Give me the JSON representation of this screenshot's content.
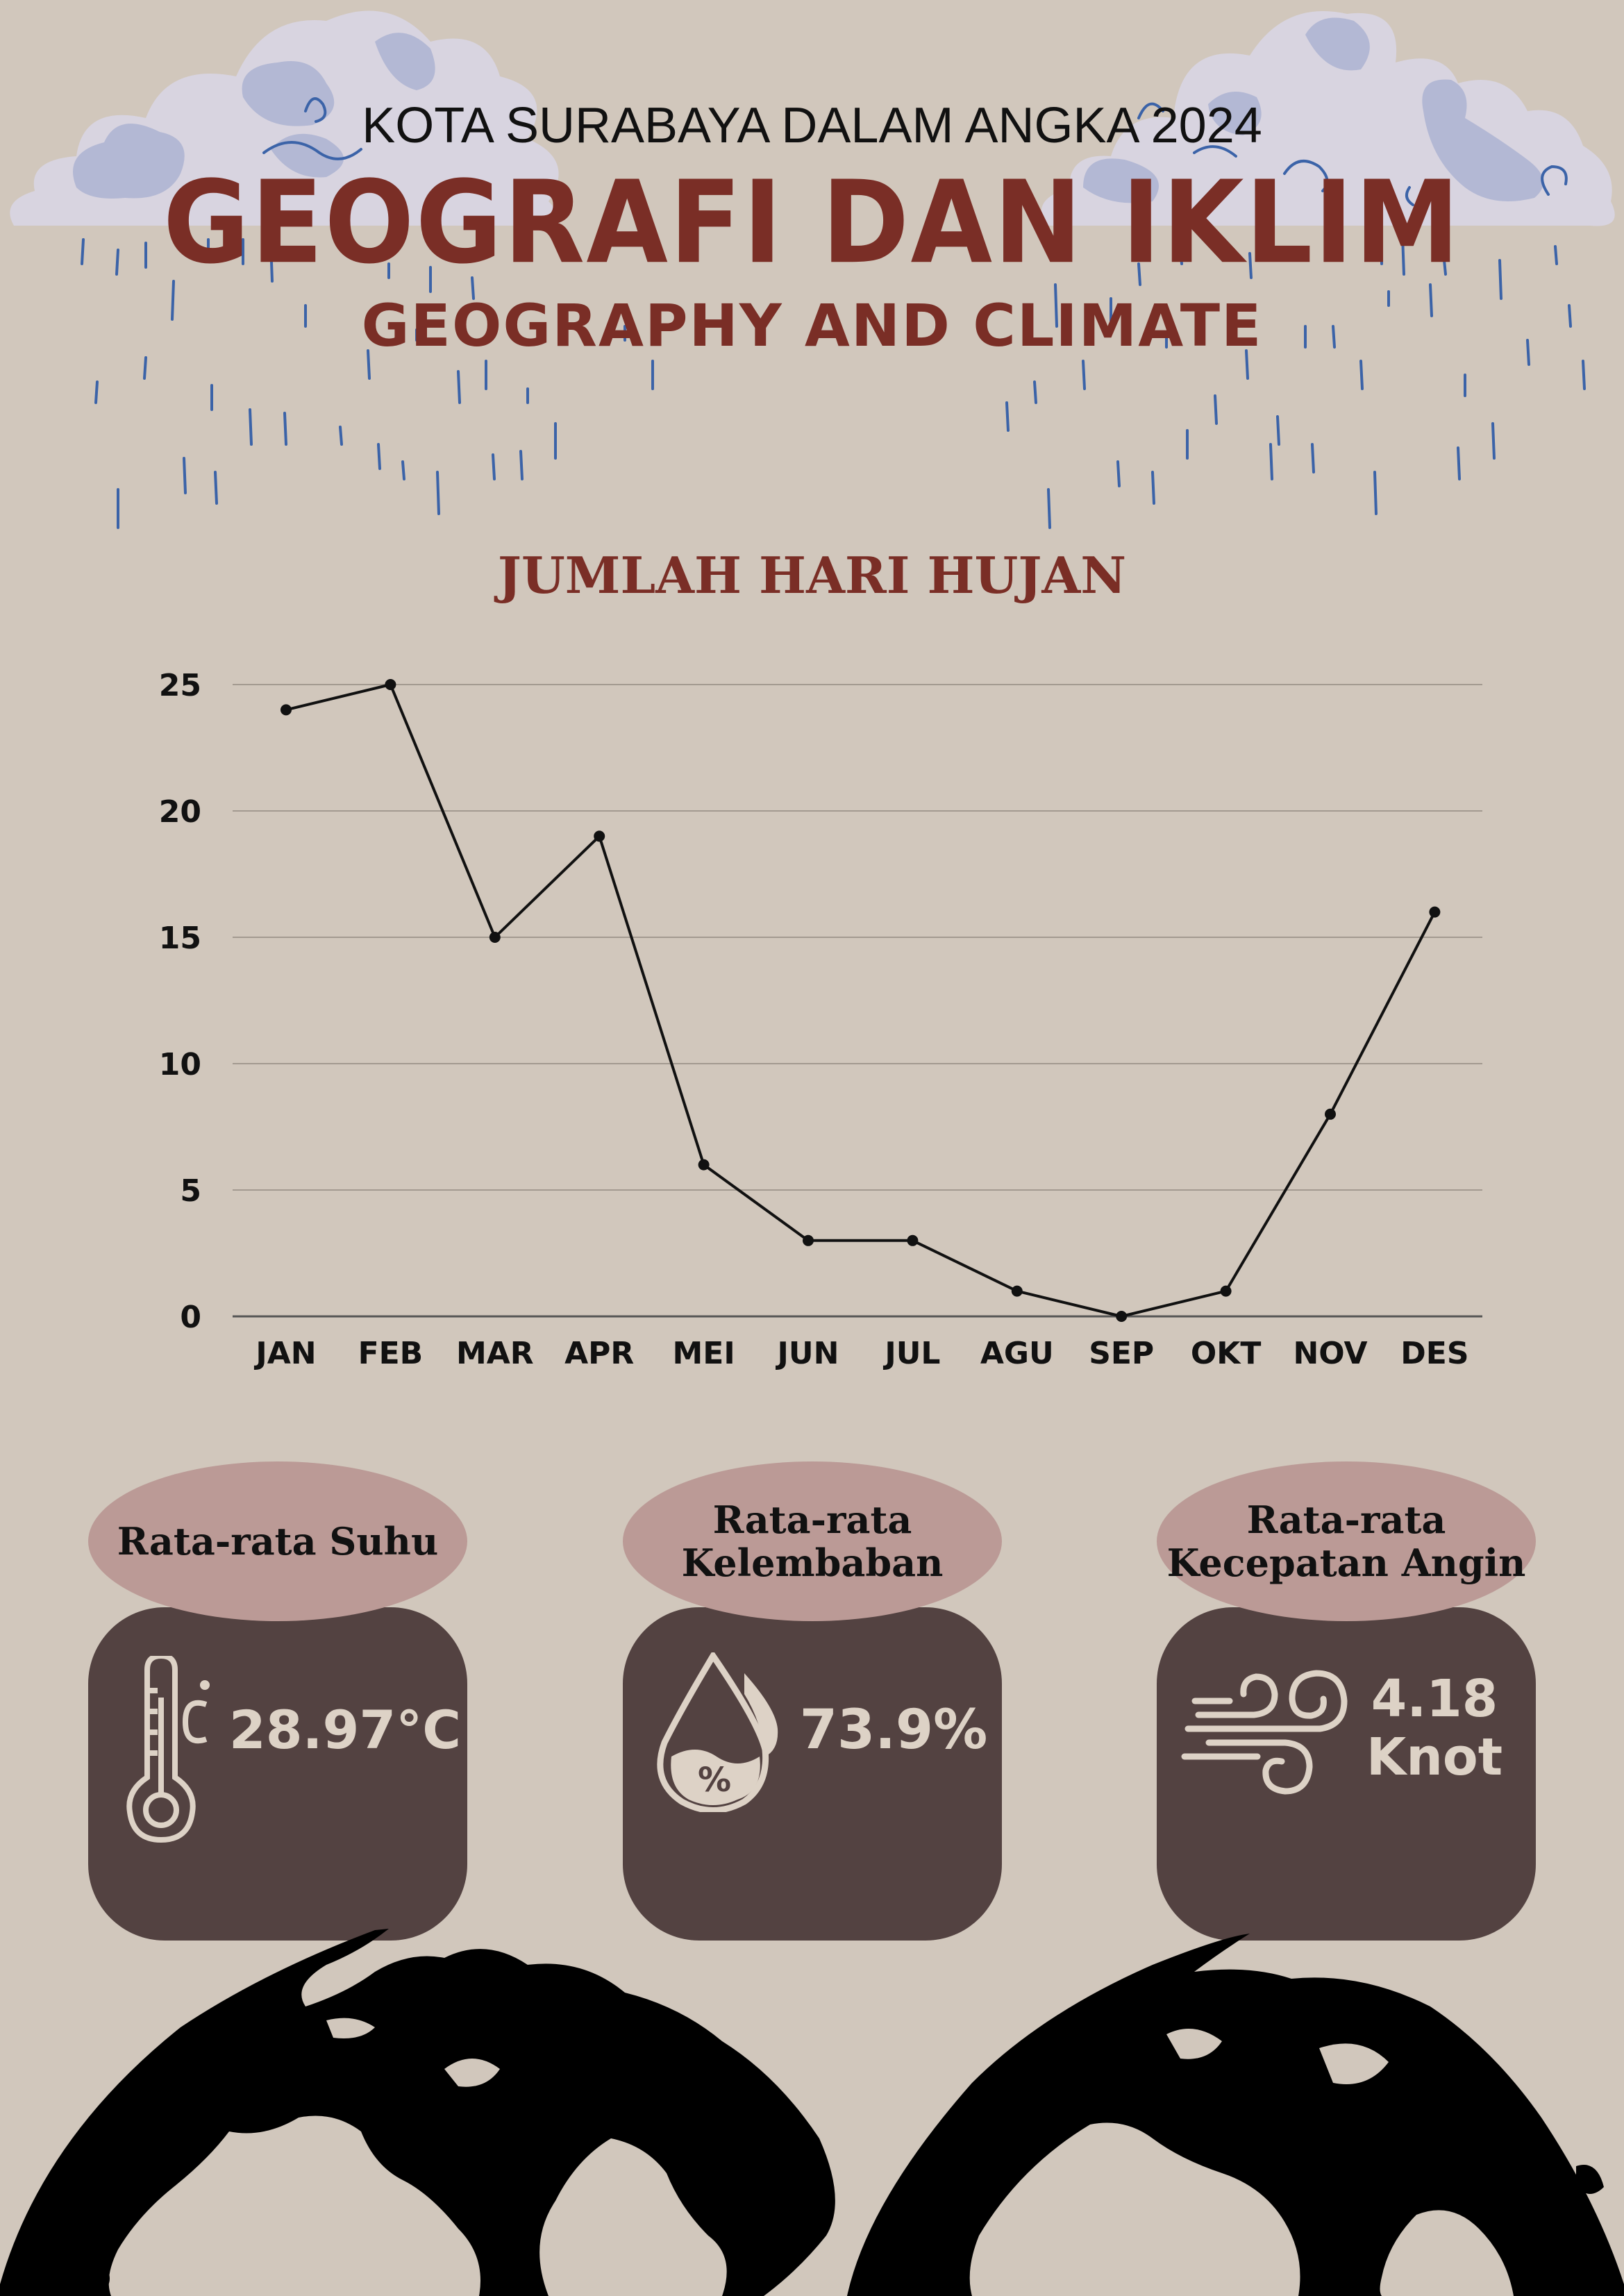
{
  "header": {
    "kicker": "KOTA SURABAYA DALAM ANGKA 2024",
    "title": "GEOGRAFI DAN IKLIM",
    "subtitle": "GEOGRAPHY AND CLIMATE"
  },
  "chart_data": {
    "type": "line",
    "title": "JUMLAH HARI HUJAN",
    "xlabel": "",
    "ylabel": "",
    "categories": [
      "JAN",
      "FEB",
      "MAR",
      "APR",
      "MEI",
      "JUN",
      "JUL",
      "AGU",
      "SEP",
      "OKT",
      "NOV",
      "DES"
    ],
    "values": [
      24,
      25,
      15,
      19,
      6,
      3,
      3,
      1,
      0,
      1,
      8,
      16
    ],
    "ylim": [
      0,
      25
    ],
    "yticks": [
      0,
      5,
      10,
      15,
      20,
      25
    ],
    "grid": true,
    "line_color": "#111111"
  },
  "stats": [
    {
      "label_lines": [
        "Rata-rata Suhu"
      ],
      "value_lines": [
        "28.97°C"
      ],
      "icon": "thermometer-icon"
    },
    {
      "label_lines": [
        "Rata-rata",
        "Kelembaban"
      ],
      "value_lines": [
        "73.9%"
      ],
      "icon": "humidity-drop-icon"
    },
    {
      "label_lines": [
        "Rata-rata",
        "Kecepatan Angin"
      ],
      "value_lines": [
        "4.18",
        "Knot"
      ],
      "icon": "wind-icon"
    }
  ],
  "colors": {
    "background": "#d1c7bc",
    "title_red": "#7a2e26",
    "card_dark": "#534241",
    "card_pill": "#bb9a96",
    "cloud": "#d8d4e0",
    "cloud_shade": "#b3b8d4",
    "rain": "#3b63a8"
  }
}
